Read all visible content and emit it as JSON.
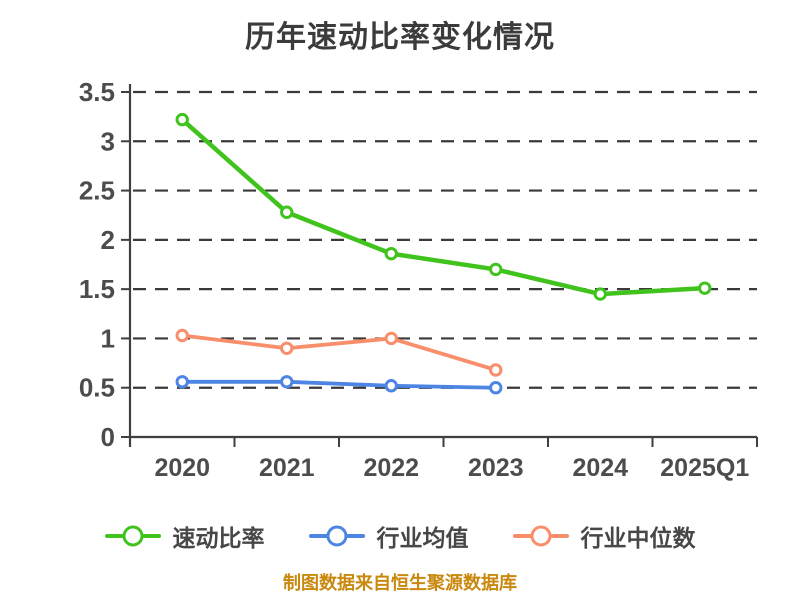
{
  "colors": {
    "background": "#FFFFFF",
    "grid": "#3A3A3A",
    "axis": "#3F3F3F",
    "tick_labels": "#4C4C4C",
    "title_text": "#3B3B3B",
    "legend_text": "#474747",
    "footer_text": "#C9880E",
    "marker_fill": "#FFFFFF"
  },
  "chart_data": {
    "type": "line",
    "title": "历年速动比率变化情况",
    "categories": [
      "2020",
      "2021",
      "2022",
      "2023",
      "2024",
      "2025Q1"
    ],
    "series": [
      {
        "name": "速动比率",
        "color": "#40C41D",
        "values": [
          3.22,
          2.28,
          1.86,
          1.7,
          1.45,
          1.51
        ]
      },
      {
        "name": "行业均值",
        "color": "#4D85E4",
        "values": [
          0.56,
          0.56,
          0.52,
          0.5
        ]
      },
      {
        "name": "行业中位数",
        "color": "#F98E6B",
        "values": [
          1.03,
          0.9,
          1.0,
          0.68
        ]
      }
    ],
    "xlabel": "",
    "ylabel": "",
    "ylim": [
      0,
      3.5
    ],
    "ytick_step": 0.5,
    "yticks": [
      "0",
      "0.5",
      "1",
      "1.5",
      "2",
      "2.5",
      "3",
      "3.5"
    ],
    "grid": "horizontal-dashed",
    "legend_position": "bottom",
    "marker_style": "circle-white-fill",
    "note": "制图数据来自恒生聚源数据库"
  }
}
